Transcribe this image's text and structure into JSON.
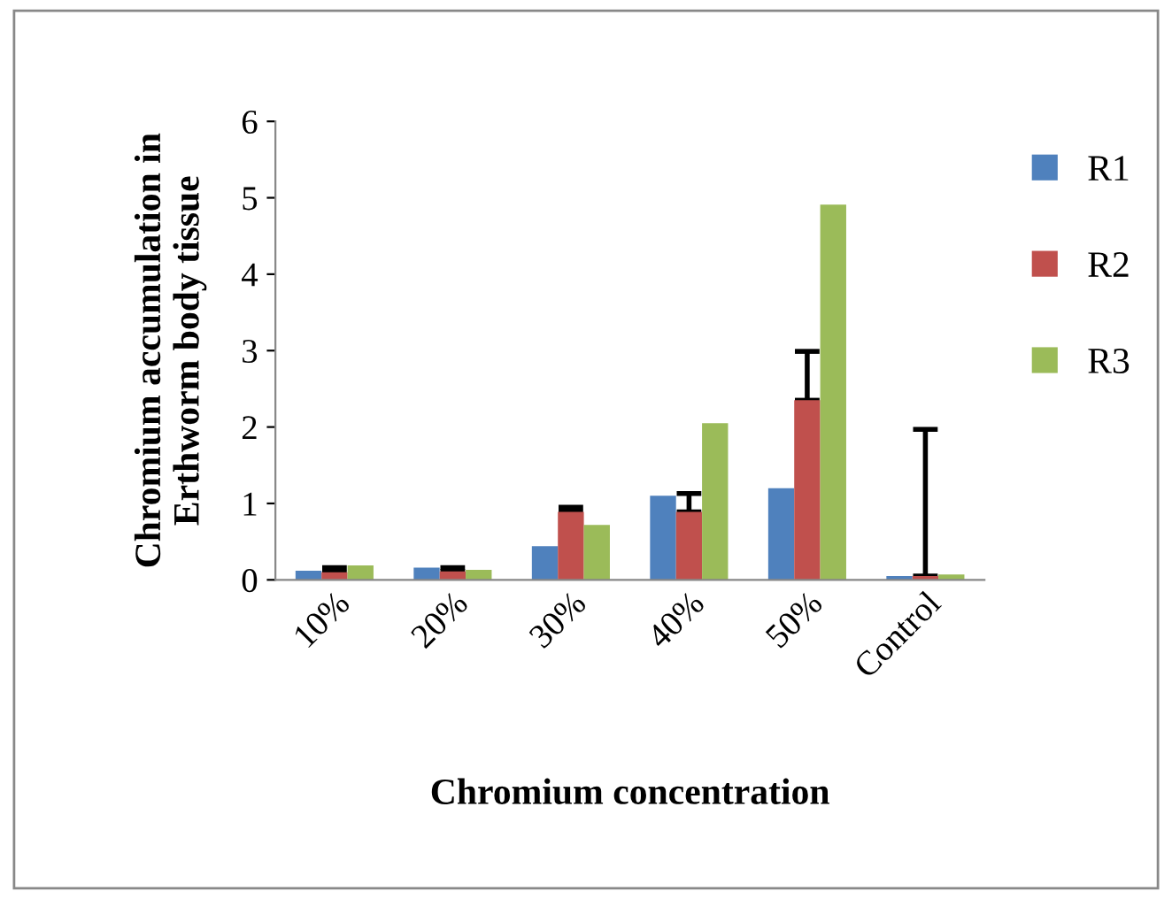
{
  "chart_data": {
    "type": "bar",
    "xlabel": "Chromium concentration",
    "ylabel": "Chromium accumulation in\nErthworm body tissue",
    "categories": [
      "10%",
      "20%",
      "30%",
      "40%",
      "50%",
      "Control"
    ],
    "series": [
      {
        "name": "R1",
        "color": "#4f81bd",
        "values": [
          0.12,
          0.16,
          0.44,
          1.1,
          1.2,
          0.05
        ]
      },
      {
        "name": "R2",
        "color": "#c0504d",
        "values": [
          0.1,
          0.11,
          0.89,
          0.89,
          2.35,
          0.05
        ],
        "errors": [
          [
            0.1,
            0.16
          ],
          [
            0.11,
            0.16
          ],
          [
            0.89,
            0.95
          ],
          [
            0.89,
            1.13
          ],
          [
            2.35,
            2.99
          ],
          [
            0.05,
            1.97
          ]
        ]
      },
      {
        "name": "R3",
        "color": "#9bbb59",
        "values": [
          0.19,
          0.13,
          0.72,
          2.05,
          4.91,
          0.07
        ]
      }
    ],
    "ylim": [
      0,
      6
    ],
    "yticks": [
      0,
      1,
      2,
      3,
      4,
      5,
      6
    ],
    "legend": "top right"
  }
}
